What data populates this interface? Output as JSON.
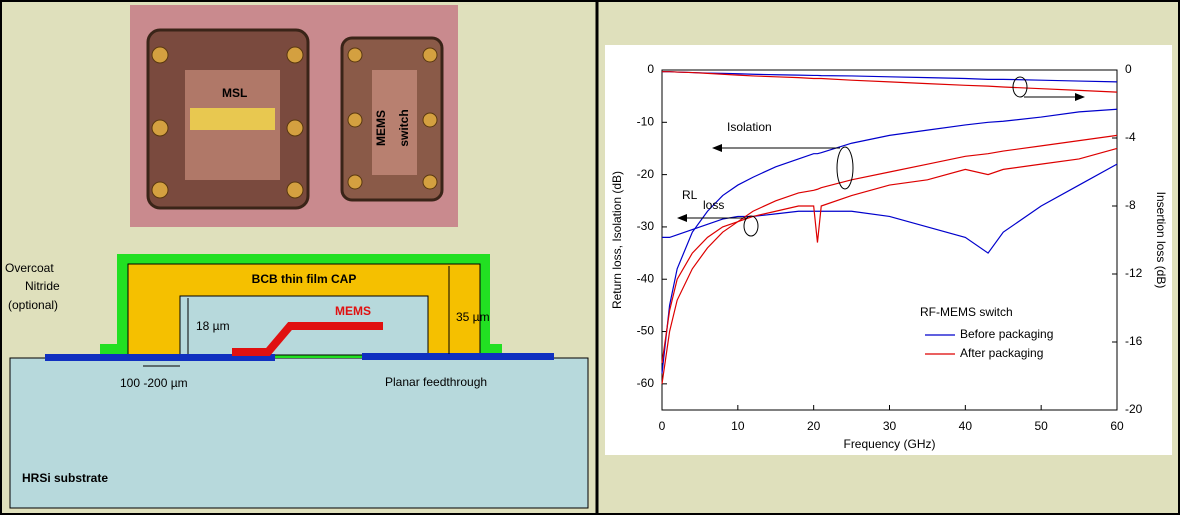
{
  "diagram": {
    "photo": {
      "label_msl": "MSL",
      "label_mems_1": "MEMS",
      "label_mems_2": "switch"
    },
    "cross_section": {
      "overcoat_1": "Overcoat",
      "overcoat_2": "Nitride",
      "overcoat_3": "(optional)",
      "cap": "BCB thin film CAP",
      "mems": "MEMS",
      "gap": "18 µm",
      "height": "35 µm",
      "width": "100 -200 µm",
      "feedthrough": "Planar feedthrough",
      "substrate": "HRSi substrate"
    }
  },
  "chart_data": {
    "type": "line",
    "xlabel": "Frequency (GHz)",
    "ylabel": "Return loss, Isolation (dB)",
    "y2label": "Insertion loss (dB)",
    "annotations": {
      "isolation": "Isolation",
      "rl": "RL",
      "rl_sub": "loss"
    },
    "legend_title": "RF-MEMS switch",
    "x": [
      0,
      1,
      2,
      4,
      6,
      8,
      10,
      12,
      15,
      18,
      20,
      20.5,
      21,
      25,
      30,
      35,
      40,
      43,
      45,
      50,
      55,
      60
    ],
    "xlim": [
      0,
      60
    ],
    "xticks": [
      0,
      10,
      20,
      30,
      40,
      50,
      60
    ],
    "ylim": [
      -65,
      0
    ],
    "yticks": [
      -60,
      -50,
      -40,
      -30,
      -20,
      -10,
      0
    ],
    "y2lim": [
      -20,
      0
    ],
    "y2ticks": [
      -20,
      -16,
      -12,
      -8,
      -4,
      0
    ],
    "series": [
      {
        "name": "Before packaging",
        "color": "#0000cc",
        "isolation": [
          -58,
          -45,
          -38,
          -31,
          -27,
          -24,
          -22,
          -20.5,
          -18.5,
          -17,
          -16,
          -16,
          -15.8,
          -14,
          -12.5,
          -11.5,
          -10.5,
          -10,
          -9.8,
          -9,
          -8,
          -7.5
        ],
        "return_loss": [
          -32,
          -32,
          -31.5,
          -30.5,
          -29.5,
          -28.5,
          -28,
          -28,
          -27.5,
          -27,
          -27,
          -27,
          -27,
          -27,
          -28,
          -30,
          -32,
          -35,
          -31,
          -26,
          -22,
          -18
        ],
        "insertion_loss": [
          -0.1,
          -0.1,
          -0.12,
          -0.15,
          -0.18,
          -0.2,
          -0.22,
          -0.25,
          -0.28,
          -0.3,
          -0.32,
          -0.32,
          -0.33,
          -0.35,
          -0.4,
          -0.45,
          -0.5,
          -0.55,
          -0.55,
          -0.6,
          -0.65,
          -0.7
        ]
      },
      {
        "name": "After packaging",
        "color": "#dd0000",
        "isolation": [
          -60,
          -50,
          -44,
          -38,
          -34,
          -31,
          -29,
          -27,
          -25,
          -23.5,
          -23,
          -22.8,
          -22.5,
          -21,
          -19.5,
          -18,
          -16.5,
          -16,
          -15.5,
          -14.5,
          -13.5,
          -12.5
        ],
        "return_loss": [
          -56,
          -46,
          -40,
          -35,
          -32,
          -30,
          -29,
          -28,
          -27,
          -26,
          -26,
          -33,
          -26,
          -24,
          -22,
          -21,
          -19,
          -20,
          -19,
          -18,
          -17,
          -15
        ],
        "insertion_loss": [
          -0.1,
          -0.1,
          -0.12,
          -0.15,
          -0.2,
          -0.25,
          -0.3,
          -0.35,
          -0.4,
          -0.45,
          -0.5,
          -0.5,
          -0.5,
          -0.6,
          -0.7,
          -0.8,
          -0.9,
          -0.95,
          -1,
          -1.1,
          -1.2,
          -1.3
        ]
      }
    ]
  }
}
